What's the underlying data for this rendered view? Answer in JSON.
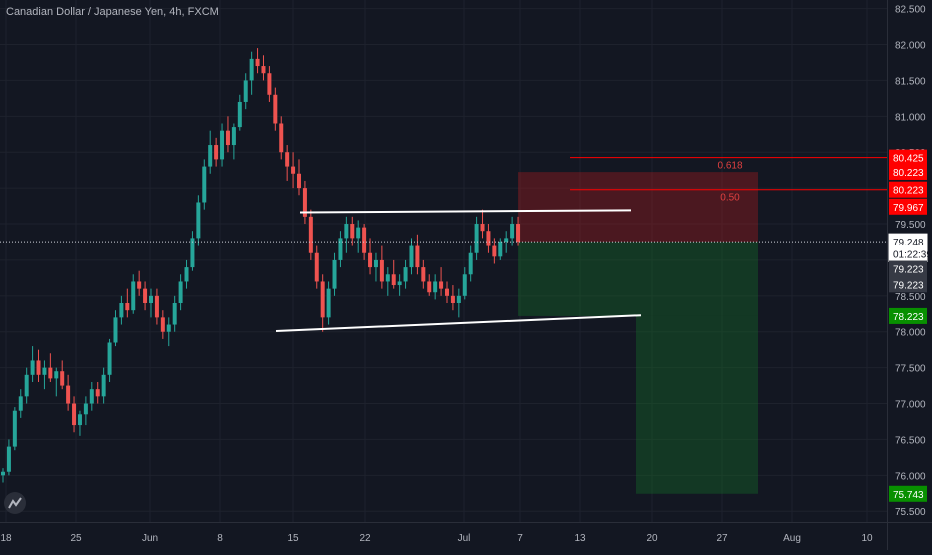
{
  "chart_data": {
    "type": "candlestick",
    "title": "Canadian Dollar / Japanese Yen, 4h, FXCM",
    "y_axis": {
      "ticks": [
        "82.500",
        "82.000",
        "81.500",
        "81.000",
        "80.500",
        "80.000",
        "79.500",
        "79.000",
        "78.500",
        "78.000",
        "77.500",
        "77.000",
        "76.500",
        "76.000",
        "75.500"
      ],
      "range": [
        75.35,
        82.62
      ]
    },
    "x_axis": {
      "ticks": [
        "18",
        "25",
        "Jun",
        "8",
        "15",
        "22",
        "Jul",
        "7",
        "13",
        "20",
        "27",
        "Aug",
        "10"
      ]
    },
    "price_tags": [
      {
        "label": "80.425",
        "value": 80.425,
        "color": "#ff0000"
      },
      {
        "label": "80.223",
        "value": 80.225,
        "color": "#ff0000"
      },
      {
        "label": "80.223",
        "value": 79.978,
        "color": "#ff0000"
      },
      {
        "label": "79.967",
        "value": 79.74,
        "color": "#ff0000"
      },
      {
        "label": "79.248",
        "value": 79.248,
        "color": "#ffffff"
      },
      {
        "label": "01:22:39",
        "value": 79.09,
        "color": "#ffffff"
      },
      {
        "label": "79.223",
        "value": 78.88,
        "color": "#363a45"
      },
      {
        "label": "79.223",
        "value": 78.66,
        "color": "#363a45"
      },
      {
        "label": "78.223",
        "value": 78.22,
        "color": "#089000"
      },
      {
        "label": "75.743",
        "value": 75.743,
        "color": "#089000"
      }
    ],
    "fib_levels": [
      {
        "label": "0.618",
        "value": 80.425
      },
      {
        "label": "0.50",
        "value": 79.978
      }
    ],
    "current_price": 79.248,
    "channel": {
      "upper": [
        {
          "x": "Jun 16",
          "y": 79.66
        },
        {
          "x": "Jul 18",
          "y": 79.69
        }
      ],
      "lower": [
        {
          "x": "Jun 13",
          "y": 78.01
        },
        {
          "x": "Jul 19",
          "y": 78.23
        }
      ]
    },
    "position": {
      "stop_zone": [
        80.223,
        79.248
      ],
      "target_zone": [
        79.248,
        75.743
      ]
    },
    "candles": [
      [
        76.0,
        76.1,
        75.9,
        76.05
      ],
      [
        76.05,
        76.5,
        76.0,
        76.4
      ],
      [
        76.4,
        76.95,
        76.35,
        76.9
      ],
      [
        76.9,
        77.2,
        76.8,
        77.1
      ],
      [
        77.1,
        77.5,
        77.0,
        77.4
      ],
      [
        77.4,
        77.8,
        77.3,
        77.6
      ],
      [
        77.6,
        77.75,
        77.3,
        77.4
      ],
      [
        77.4,
        77.6,
        77.2,
        77.5
      ],
      [
        77.5,
        77.7,
        77.3,
        77.35
      ],
      [
        77.35,
        77.5,
        77.1,
        77.45
      ],
      [
        77.45,
        77.6,
        77.2,
        77.25
      ],
      [
        77.25,
        77.4,
        76.9,
        77.0
      ],
      [
        77.0,
        77.1,
        76.6,
        76.7
      ],
      [
        76.7,
        76.9,
        76.55,
        76.85
      ],
      [
        76.85,
        77.1,
        76.7,
        77.0
      ],
      [
        77.0,
        77.3,
        76.9,
        77.2
      ],
      [
        77.2,
        77.3,
        77.0,
        77.1
      ],
      [
        77.1,
        77.5,
        77.0,
        77.4
      ],
      [
        77.4,
        77.9,
        77.3,
        77.85
      ],
      [
        77.85,
        78.3,
        77.8,
        78.2
      ],
      [
        78.2,
        78.5,
        78.1,
        78.4
      ],
      [
        78.4,
        78.6,
        78.2,
        78.3
      ],
      [
        78.3,
        78.8,
        78.25,
        78.7
      ],
      [
        78.7,
        78.85,
        78.5,
        78.6
      ],
      [
        78.6,
        78.7,
        78.3,
        78.4
      ],
      [
        78.4,
        78.6,
        78.2,
        78.5
      ],
      [
        78.5,
        78.6,
        78.1,
        78.2
      ],
      [
        78.2,
        78.3,
        77.9,
        78.0
      ],
      [
        78.0,
        78.2,
        77.8,
        78.1
      ],
      [
        78.1,
        78.5,
        78.0,
        78.4
      ],
      [
        78.4,
        78.8,
        78.3,
        78.7
      ],
      [
        78.7,
        79.0,
        78.6,
        78.9
      ],
      [
        78.9,
        79.4,
        78.85,
        79.3
      ],
      [
        79.3,
        79.9,
        79.2,
        79.8
      ],
      [
        79.8,
        80.4,
        79.7,
        80.3
      ],
      [
        80.3,
        80.8,
        80.2,
        80.6
      ],
      [
        80.6,
        80.7,
        80.3,
        80.4
      ],
      [
        80.4,
        80.9,
        80.3,
        80.8
      ],
      [
        80.8,
        81.0,
        80.5,
        80.6
      ],
      [
        80.6,
        80.9,
        80.4,
        80.85
      ],
      [
        80.85,
        81.3,
        80.8,
        81.2
      ],
      [
        81.2,
        81.6,
        81.1,
        81.5
      ],
      [
        81.5,
        81.9,
        81.3,
        81.8
      ],
      [
        81.8,
        81.95,
        81.6,
        81.7
      ],
      [
        81.7,
        81.85,
        81.5,
        81.6
      ],
      [
        81.6,
        81.7,
        81.2,
        81.3
      ],
      [
        81.3,
        81.4,
        80.8,
        80.9
      ],
      [
        80.9,
        81.0,
        80.4,
        80.5
      ],
      [
        80.5,
        80.6,
        80.1,
        80.3
      ],
      [
        80.3,
        80.5,
        80.0,
        80.2
      ],
      [
        80.2,
        80.4,
        79.9,
        80.0
      ],
      [
        80.0,
        80.1,
        79.5,
        79.6
      ],
      [
        79.6,
        79.7,
        79.0,
        79.1
      ],
      [
        79.1,
        79.2,
        78.6,
        78.7
      ],
      [
        78.7,
        78.8,
        78.0,
        78.2
      ],
      [
        78.2,
        78.7,
        78.1,
        78.6
      ],
      [
        78.6,
        79.1,
        78.5,
        79.0
      ],
      [
        79.0,
        79.4,
        78.9,
        79.3
      ],
      [
        79.3,
        79.6,
        79.1,
        79.5
      ],
      [
        79.5,
        79.6,
        79.2,
        79.3
      ],
      [
        79.3,
        79.55,
        79.1,
        79.45
      ],
      [
        79.45,
        79.5,
        79.0,
        79.1
      ],
      [
        79.1,
        79.3,
        78.8,
        78.9
      ],
      [
        78.9,
        79.1,
        78.7,
        79.0
      ],
      [
        79.0,
        79.2,
        78.6,
        78.7
      ],
      [
        78.7,
        78.9,
        78.5,
        78.8
      ],
      [
        78.8,
        79.0,
        78.6,
        78.65
      ],
      [
        78.65,
        78.8,
        78.5,
        78.7
      ],
      [
        78.7,
        79.0,
        78.6,
        78.9
      ],
      [
        78.9,
        79.3,
        78.8,
        79.2
      ],
      [
        79.2,
        79.35,
        78.8,
        78.9
      ],
      [
        78.9,
        79.0,
        78.6,
        78.7
      ],
      [
        78.7,
        78.8,
        78.5,
        78.55
      ],
      [
        78.55,
        78.8,
        78.45,
        78.7
      ],
      [
        78.7,
        78.9,
        78.5,
        78.6
      ],
      [
        78.6,
        78.7,
        78.4,
        78.5
      ],
      [
        78.5,
        78.65,
        78.3,
        78.4
      ],
      [
        78.4,
        78.6,
        78.2,
        78.5
      ],
      [
        78.5,
        78.9,
        78.45,
        78.8
      ],
      [
        78.8,
        79.2,
        78.7,
        79.1
      ],
      [
        79.1,
        79.6,
        79.0,
        79.5
      ],
      [
        79.5,
        79.7,
        79.3,
        79.4
      ],
      [
        79.4,
        79.5,
        79.1,
        79.2
      ],
      [
        79.2,
        79.3,
        78.95,
        79.05
      ],
      [
        79.05,
        79.3,
        79.0,
        79.25
      ],
      [
        79.25,
        79.4,
        79.1,
        79.3
      ],
      [
        79.3,
        79.6,
        79.2,
        79.5
      ],
      [
        79.5,
        79.6,
        79.2,
        79.25
      ]
    ]
  }
}
